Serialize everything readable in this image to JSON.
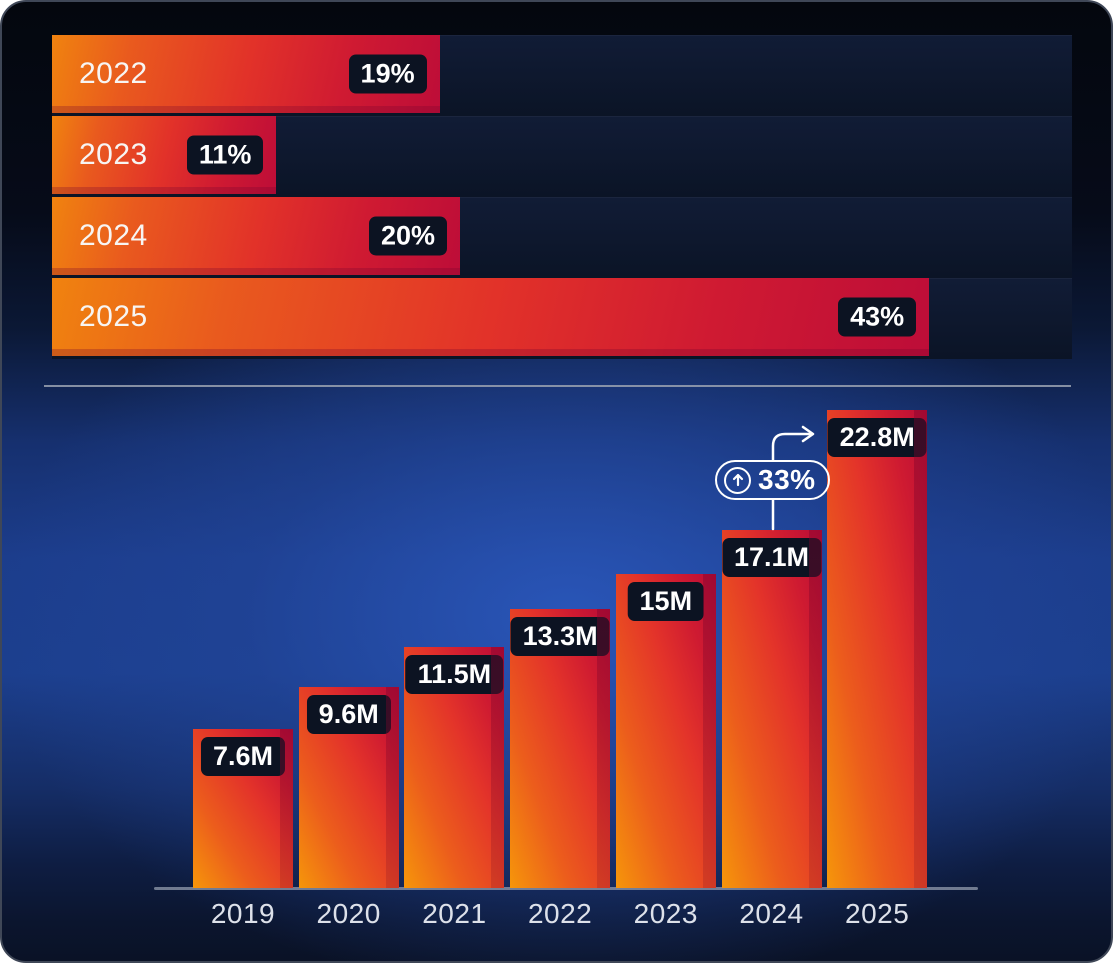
{
  "panel": {
    "type": "infographic",
    "accent_colors": {
      "bar_gradient_start": "#f5930a",
      "bar_gradient_mid": "#e4332a",
      "bar_gradient_end": "#bb0d37",
      "badge_background": "#0c1322",
      "text_primary": "#ffffff",
      "axis_text": "#dde1ea",
      "divider": "#9aa2b2",
      "background_top": "#04070e",
      "background_center": "#1c3f8e"
    }
  },
  "chart_data": [
    {
      "type": "bar",
      "orientation": "horizontal",
      "title": "",
      "categories": [
        "2022",
        "2023",
        "2024",
        "2025"
      ],
      "values": [
        19,
        11,
        20,
        43
      ],
      "value_labels": [
        "19%",
        "11%",
        "20%",
        "43%"
      ],
      "unit": "percent",
      "xlim": [
        0,
        50
      ],
      "grid": false,
      "legend": false
    },
    {
      "type": "bar",
      "orientation": "vertical",
      "title": "",
      "categories": [
        "2019",
        "2020",
        "2021",
        "2022",
        "2023",
        "2024",
        "2025"
      ],
      "values": [
        7.6,
        9.6,
        11.5,
        13.3,
        15,
        17.1,
        22.8
      ],
      "value_labels": [
        "7.6M",
        "9.6M",
        "11.5M",
        "13.3M",
        "15M",
        "17.1M",
        "22.8M"
      ],
      "unit": "millions",
      "ylim": [
        0,
        23.2
      ],
      "grid": false,
      "legend": false,
      "annotation": {
        "label": "33%",
        "icon": "arrow-up-circle-icon",
        "from_category": "2024",
        "to_category": "2025"
      }
    }
  ]
}
